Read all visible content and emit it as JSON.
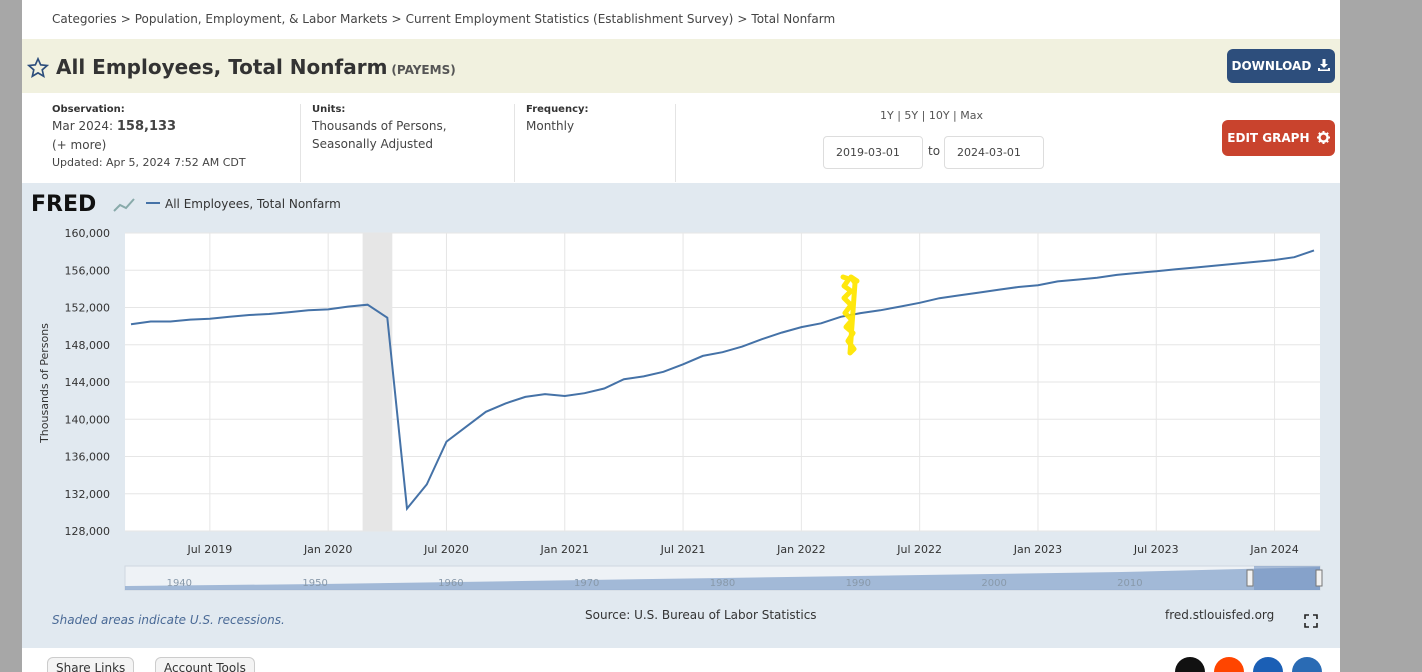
{
  "breadcrumbs": [
    "Categories",
    ">",
    "Population, Employment, & Labor Markets",
    ">",
    "Current Employment Statistics (Establishment Survey)",
    ">",
    "Total Nonfarm"
  ],
  "series": {
    "title": "All Employees, Total Nonfarm",
    "id": "(PAYEMS)"
  },
  "buttons": {
    "download": "DOWNLOAD",
    "edit": "EDIT GRAPH"
  },
  "observation": {
    "label": "Observation:",
    "date": "Mar 2024:",
    "value": "158,133",
    "more": "(+ more)",
    "updated": "Updated: Apr 5, 2024 7:52 AM CDT"
  },
  "units": {
    "label": "Units:",
    "line1": "Thousands of Persons,",
    "line2": "Seasonally Adjusted"
  },
  "frequency": {
    "label": "Frequency:",
    "value": "Monthly"
  },
  "ranges": "1Y | 5Y | 10Y | Max",
  "dates": {
    "start": "2019-03-01",
    "to": "to",
    "end": "2024-03-01"
  },
  "chart": {
    "logo": "FRED",
    "legend": "All Employees, Total Nonfarm",
    "note": "Shaded areas indicate U.S. recessions.",
    "source": "Source: U.S. Bureau of Labor Statistics",
    "site": "fred.stlouisfed.org"
  },
  "footer": {
    "share": "Share Links",
    "account": "Account Tools"
  },
  "colors": {
    "line": "#4572a7",
    "recession": "#e6e6e6",
    "chart_bg": "#e1e9f0",
    "download_btn": "#2d4e7c",
    "edit_btn": "#c9432d",
    "highlight": "#ffe600"
  },
  "chart_data": {
    "type": "line",
    "x_start": "2019-03",
    "x_end": "2024-03",
    "ylabel": "Thousands of Persons",
    "ylim": [
      128000,
      160000
    ],
    "yticks": [
      128000,
      132000,
      136000,
      140000,
      144000,
      148000,
      152000,
      156000,
      160000
    ],
    "ytick_labels": [
      "128,000",
      "132,000",
      "136,000",
      "140,000",
      "144,000",
      "148,000",
      "152,000",
      "156,000",
      "160,000"
    ],
    "xtick_labels": [
      {
        "label": "Jul 2019",
        "date": "2019-07"
      },
      {
        "label": "Jan 2020",
        "date": "2020-01"
      },
      {
        "label": "Jul 2020",
        "date": "2020-07"
      },
      {
        "label": "Jan 2021",
        "date": "2021-01"
      },
      {
        "label": "Jul 2021",
        "date": "2021-07"
      },
      {
        "label": "Jan 2022",
        "date": "2022-01"
      },
      {
        "label": "Jul 2022",
        "date": "2022-07"
      },
      {
        "label": "Jan 2023",
        "date": "2023-01"
      },
      {
        "label": "Jul 2023",
        "date": "2023-07"
      },
      {
        "label": "Jan 2024",
        "date": "2024-01"
      }
    ],
    "recession": [
      "2020-03",
      "2020-04"
    ],
    "grid": true,
    "legend": "top-left",
    "navigator_labels": [
      "1940",
      "1950",
      "1960",
      "1970",
      "1980",
      "1990",
      "2000",
      "2010"
    ],
    "series": [
      {
        "name": "All Employees, Total Nonfarm",
        "values": [
          150200,
          150500,
          150500,
          150700,
          150800,
          151000,
          151200,
          151300,
          151500,
          151700,
          151800,
          152100,
          152300,
          150900,
          130400,
          133000,
          137600,
          139200,
          140800,
          141700,
          142400,
          142700,
          142500,
          142800,
          143300,
          144300,
          144600,
          145100,
          145900,
          146800,
          147200,
          147800,
          148600,
          149300,
          149900,
          150300,
          151000,
          151400,
          151700,
          152100,
          152500,
          153000,
          153300,
          153600,
          153900,
          154200,
          154400,
          154800,
          155000,
          155200,
          155500,
          155700,
          155900,
          156100,
          156300,
          156500,
          156700,
          156900,
          157100,
          157400,
          158133
        ]
      }
    ]
  }
}
